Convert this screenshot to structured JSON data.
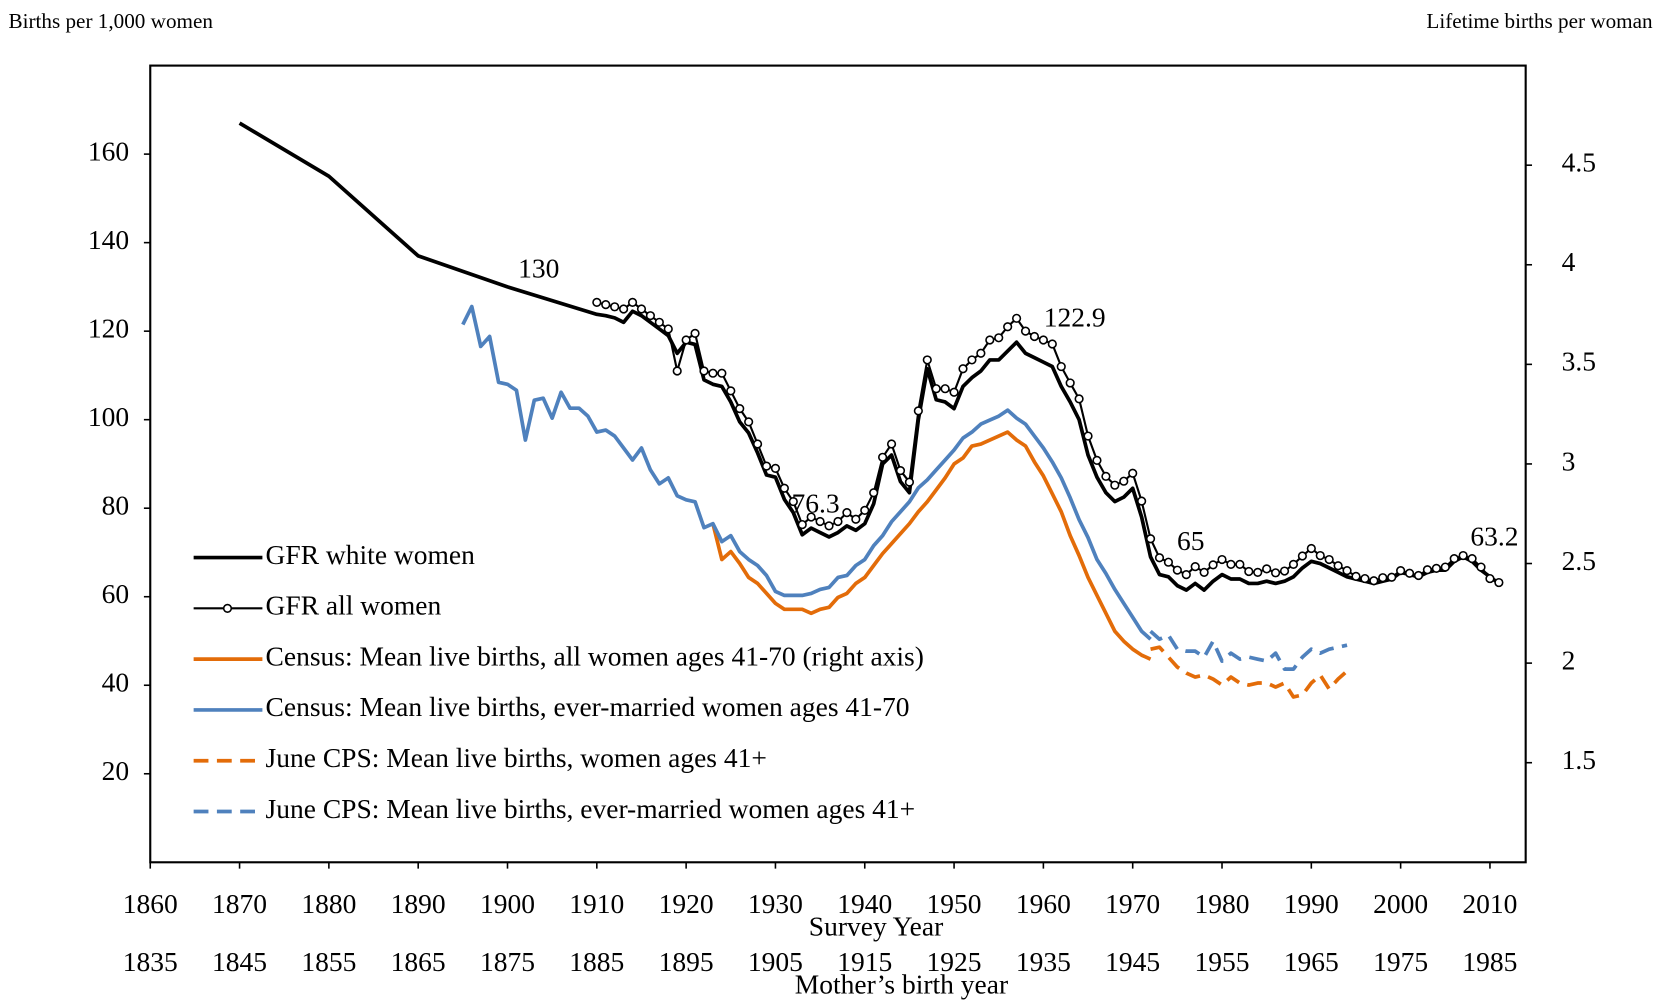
{
  "chart_data": {
    "type": "line",
    "y_label": "Births per 1,000 women",
    "y2_label": "Lifetime births per woman",
    "x_label": "Survey Year",
    "x2_label": "Mother’s birth year",
    "xlim": [
      1860,
      2014
    ],
    "xticks": [
      1860,
      1870,
      1880,
      1890,
      1900,
      1910,
      1920,
      1930,
      1940,
      1950,
      1960,
      1970,
      1980,
      1990,
      2000,
      2010
    ],
    "x2lim": [
      1835,
      1989
    ],
    "x2ticks": [
      1835,
      1845,
      1855,
      1865,
      1875,
      1885,
      1895,
      1905,
      1915,
      1925,
      1935,
      1945,
      1955,
      1965,
      1975,
      1985
    ],
    "ylim": [
      0,
      180
    ],
    "yticks": [
      20,
      40,
      60,
      80,
      100,
      120,
      140,
      160
    ],
    "y2lim": [
      1,
      5
    ],
    "y2ticks": [
      1.5,
      2,
      2.5,
      3,
      3.5,
      4,
      4.5
    ],
    "legend": "lower left",
    "series": [
      {
        "name": "GFR white women",
        "color": "#000000",
        "dash": "solid",
        "marker": "none",
        "x": [
          1870,
          1880,
          1890,
          1900,
          1910,
          1911,
          1912,
          1913,
          1914,
          1915,
          1916,
          1917,
          1918,
          1919,
          1920,
          1921,
          1922,
          1923,
          1924,
          1925,
          1926,
          1927,
          1928,
          1929,
          1930,
          1931,
          1932,
          1933,
          1934,
          1935,
          1936,
          1937,
          1938,
          1939,
          1940,
          1941,
          1942,
          1943,
          1944,
          1945,
          1946,
          1947,
          1948,
          1949,
          1950,
          1951,
          1952,
          1953,
          1954,
          1955,
          1956,
          1957,
          1958,
          1959,
          1960,
          1961,
          1962,
          1963,
          1964,
          1965,
          1966,
          1967,
          1968,
          1969,
          1970,
          1971,
          1972,
          1973,
          1974,
          1975,
          1976,
          1977,
          1978,
          1979,
          1980,
          1981,
          1982,
          1983,
          1984,
          1985,
          1986,
          1987,
          1988,
          1989,
          1990,
          1991,
          1992,
          1993,
          1994,
          1995,
          1996,
          1997,
          1998,
          1999,
          2000,
          2001,
          2002,
          2003,
          2004,
          2005,
          2006,
          2007,
          2008,
          2009,
          2010,
          2011
        ],
        "values": [
          167,
          155,
          137,
          130,
          123.8,
          123.5,
          123,
          122,
          124.5,
          123.5,
          122,
          120.5,
          119,
          115,
          117.5,
          117,
          109,
          108,
          107.5,
          104,
          99.5,
          97,
          92.5,
          87.5,
          87,
          82,
          79,
          74,
          75.5,
          74.5,
          73.5,
          74.5,
          76,
          75,
          76.5,
          81,
          90,
          92,
          86,
          83.5,
          100,
          111.5,
          104.5,
          104,
          102.5,
          107.5,
          109.5,
          111,
          113.5,
          113.5,
          115.5,
          117.5,
          115,
          114,
          113,
          112,
          107.5,
          104,
          100,
          92,
          87,
          83.5,
          81.5,
          82.5,
          84.5,
          78,
          69,
          65,
          64.5,
          62.5,
          61.5,
          63,
          61.5,
          63.5,
          65,
          64,
          64,
          63,
          63,
          63.5,
          63,
          63.5,
          64.5,
          66.5,
          68,
          67.5,
          66.5,
          65.5,
          64.5,
          64,
          63.5,
          63,
          63.5,
          64,
          65.5,
          65,
          64.5,
          65.5,
          66,
          66,
          68,
          69,
          68,
          66,
          64.5,
          63
        ]
      },
      {
        "name": "GFR all women",
        "color": "#000000",
        "dash": "solid",
        "marker": "circle",
        "x": [
          1910,
          1911,
          1912,
          1913,
          1914,
          1915,
          1916,
          1917,
          1918,
          1919,
          1920,
          1921,
          1922,
          1923,
          1924,
          1925,
          1926,
          1927,
          1928,
          1929,
          1930,
          1931,
          1932,
          1933,
          1934,
          1935,
          1936,
          1937,
          1938,
          1939,
          1940,
          1941,
          1942,
          1943,
          1944,
          1945,
          1946,
          1947,
          1948,
          1949,
          1950,
          1951,
          1952,
          1953,
          1954,
          1955,
          1956,
          1957,
          1958,
          1959,
          1960,
          1961,
          1962,
          1963,
          1964,
          1965,
          1966,
          1967,
          1968,
          1969,
          1970,
          1971,
          1972,
          1973,
          1974,
          1975,
          1976,
          1977,
          1978,
          1979,
          1980,
          1981,
          1982,
          1983,
          1984,
          1985,
          1986,
          1987,
          1988,
          1989,
          1990,
          1991,
          1992,
          1993,
          1994,
          1995,
          1996,
          1997,
          1998,
          1999,
          2000,
          2001,
          2002,
          2003,
          2004,
          2005,
          2006,
          2007,
          2008,
          2009,
          2010,
          2011
        ],
        "values": [
          126.5,
          126,
          125.5,
          125,
          126.5,
          125,
          123.5,
          122,
          120.5,
          111,
          118,
          119.5,
          111,
          110.5,
          110.5,
          106.5,
          102.5,
          99.5,
          94.5,
          89.5,
          89,
          84.5,
          81.5,
          76.3,
          78,
          77,
          76,
          77,
          79,
          77.5,
          79.5,
          83.5,
          91.5,
          94.5,
          88.5,
          85.9,
          102,
          113.5,
          107,
          107,
          106.2,
          111.5,
          113.5,
          115,
          118,
          118.5,
          121,
          122.9,
          120,
          118.8,
          118,
          117.1,
          112,
          108.3,
          104.7,
          96.3,
          90.8,
          87.2,
          85.2,
          86.1,
          87.9,
          81.6,
          73.1,
          68.8,
          67.8,
          66,
          65,
          66.8,
          65.5,
          67.2,
          68.4,
          67.3,
          67.3,
          65.7,
          65.5,
          66.3,
          65.4,
          65.8,
          67.3,
          69.2,
          70.9,
          69.3,
          68.4,
          67,
          65.9,
          64.6,
          64.1,
          63.6,
          64.3,
          64.4,
          65.9,
          65.3,
          64.8,
          66.1,
          66.4,
          66.7,
          68.6,
          69.3,
          68.6,
          66.7,
          64.1,
          63.2
        ]
      },
      {
        "name": "Census: Mean live births, all women ages 41-70 (right axis)",
        "color": "#E36C09",
        "dash": "solid",
        "marker": "none",
        "axis": "y2",
        "x": [
          1923,
          1924,
          1925,
          1926,
          1927,
          1928,
          1929,
          1930,
          1931,
          1932,
          1933,
          1934,
          1935,
          1936,
          1937,
          1938,
          1939,
          1940,
          1941,
          1942,
          1943,
          1944,
          1945,
          1946,
          1947,
          1948,
          1949,
          1950,
          1951,
          1952,
          1953,
          1954,
          1955,
          1956,
          1957,
          1958,
          1959,
          1960,
          1961,
          1962,
          1963,
          1964,
          1965,
          1966,
          1967,
          1968,
          1969,
          1970,
          1971,
          1972
        ],
        "values": [
          2.7,
          2.52,
          2.56,
          2.5,
          2.43,
          2.4,
          2.35,
          2.3,
          2.27,
          2.27,
          2.27,
          2.25,
          2.27,
          2.28,
          2.33,
          2.35,
          2.4,
          2.43,
          2.49,
          2.55,
          2.6,
          2.65,
          2.7,
          2.76,
          2.81,
          2.87,
          2.93,
          3.0,
          3.03,
          3.09,
          3.1,
          3.12,
          3.14,
          3.16,
          3.12,
          3.09,
          3.01,
          2.94,
          2.85,
          2.76,
          2.64,
          2.54,
          2.43,
          2.34,
          2.25,
          2.16,
          2.11,
          2.07,
          2.04,
          2.02
        ]
      },
      {
        "name": "Census: Mean live births, ever-married women ages 41-70",
        "color": "#4F81BD",
        "dash": "solid",
        "marker": "none",
        "axis": "y2",
        "x": [
          1895,
          1896,
          1897,
          1898,
          1899,
          1900,
          1901,
          1902,
          1903,
          1904,
          1905,
          1906,
          1907,
          1908,
          1909,
          1910,
          1911,
          1912,
          1913,
          1914,
          1915,
          1916,
          1917,
          1918,
          1919,
          1920,
          1921,
          1922,
          1923,
          1924,
          1925,
          1926,
          1927,
          1928,
          1929,
          1930,
          1931,
          1932,
          1933,
          1934,
          1935,
          1936,
          1937,
          1938,
          1939,
          1940,
          1941,
          1942,
          1943,
          1944,
          1945,
          1946,
          1947,
          1948,
          1949,
          1950,
          1951,
          1952,
          1953,
          1954,
          1955,
          1956,
          1957,
          1958,
          1959,
          1960,
          1961,
          1962,
          1963,
          1964,
          1965,
          1966,
          1967,
          1968,
          1969,
          1970,
          1971,
          1972
        ],
        "values": [
          3.7,
          3.79,
          3.59,
          3.64,
          3.41,
          3.4,
          3.37,
          3.12,
          3.32,
          3.33,
          3.23,
          3.36,
          3.28,
          3.28,
          3.24,
          3.16,
          3.17,
          3.14,
          3.08,
          3.02,
          3.08,
          2.97,
          2.9,
          2.93,
          2.84,
          2.82,
          2.81,
          2.68,
          2.7,
          2.61,
          2.64,
          2.56,
          2.52,
          2.49,
          2.44,
          2.36,
          2.34,
          2.34,
          2.34,
          2.35,
          2.37,
          2.38,
          2.43,
          2.44,
          2.49,
          2.52,
          2.59,
          2.64,
          2.71,
          2.76,
          2.81,
          2.88,
          2.92,
          2.97,
          3.02,
          3.07,
          3.13,
          3.16,
          3.2,
          3.22,
          3.24,
          3.27,
          3.23,
          3.2,
          3.14,
          3.08,
          3.01,
          2.93,
          2.83,
          2.72,
          2.63,
          2.52,
          2.45,
          2.37,
          2.3,
          2.23,
          2.16,
          2.12
        ]
      },
      {
        "name": "June CPS: Mean live births, women ages 41+",
        "color": "#E36C09",
        "dash": "dashed",
        "marker": "none",
        "axis": "y2",
        "x": [
          1972,
          1973,
          1974,
          1975,
          1976,
          1977,
          1978,
          1979,
          1980,
          1981,
          1982,
          1983,
          1984,
          1985,
          1986,
          1987,
          1988,
          1989,
          1990,
          1991,
          1992,
          1993,
          1994
        ],
        "values": [
          2.07,
          2.08,
          2.03,
          1.98,
          1.95,
          1.93,
          1.94,
          1.92,
          1.89,
          1.93,
          1.9,
          1.89,
          1.9,
          1.9,
          1.88,
          1.9,
          1.83,
          1.84,
          1.9,
          1.94,
          1.87,
          1.92,
          1.96
        ]
      },
      {
        "name": "June CPS: Mean live births, ever-married women ages 41+",
        "color": "#4F81BD",
        "dash": "dashed",
        "marker": "none",
        "axis": "y2",
        "x": [
          1972,
          1973,
          1974,
          1975,
          1976,
          1977,
          1978,
          1979,
          1980,
          1981,
          1982,
          1983,
          1984,
          1985,
          1986,
          1987,
          1988,
          1989,
          1990,
          1991,
          1992,
          1993,
          1994
        ],
        "values": [
          2.16,
          2.12,
          2.14,
          2.07,
          2.06,
          2.06,
          2.03,
          2.11,
          2.01,
          2.05,
          2.02,
          2.03,
          2.02,
          2.01,
          2.05,
          1.97,
          1.97,
          2.03,
          2.07,
          2.05,
          2.07,
          2.08,
          2.09
        ]
      }
    ],
    "annotations": [
      {
        "text": "130",
        "x": 1903.5,
        "y": 133.5
      },
      {
        "text": "76.3",
        "x": 1934.5,
        "y": 80.5
      },
      {
        "text": "122.9",
        "x": 1963.5,
        "y": 122.5
      },
      {
        "text": "65",
        "x": 1976.5,
        "y": 72
      },
      {
        "text": "63.2",
        "x": 2010.5,
        "y": 73
      }
    ]
  }
}
